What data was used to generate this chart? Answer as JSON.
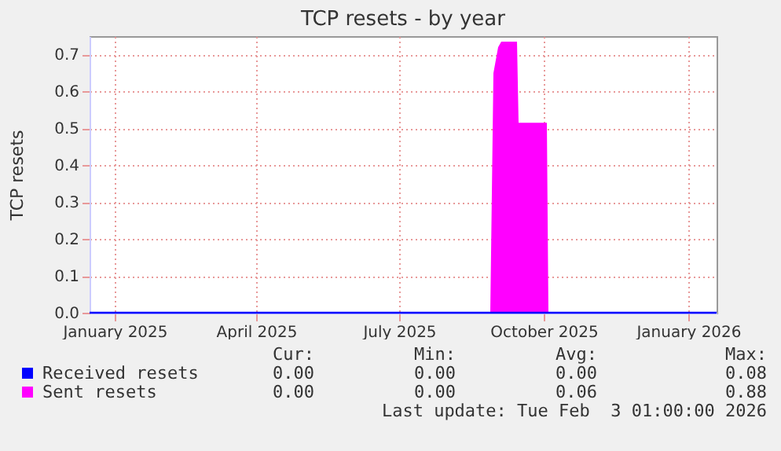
{
  "chart_data": {
    "type": "area",
    "title": "TCP resets - by year",
    "ylabel": "TCP resets",
    "xlim": [
      "2024-12-16",
      "2026-01-19"
    ],
    "xticks": [
      {
        "value": "2025-01-01",
        "label": "January 2025"
      },
      {
        "value": "2025-04-01",
        "label": "April 2025"
      },
      {
        "value": "2025-07-01",
        "label": "July 2025"
      },
      {
        "value": "2025-10-01",
        "label": "October 2025"
      },
      {
        "value": "2026-01-01",
        "label": "January 2026"
      }
    ],
    "ylim": [
      0,
      0.75
    ],
    "yticks": [
      {
        "value": 0,
        "label": "0.0"
      },
      {
        "value": 0.1,
        "label": "0.1"
      },
      {
        "value": 0.2,
        "label": "0.2"
      },
      {
        "value": 0.3,
        "label": "0.3"
      },
      {
        "value": 0.4,
        "label": "0.4"
      },
      {
        "value": 0.5,
        "label": "0.5"
      },
      {
        "value": 0.6,
        "label": "0.6"
      },
      {
        "value": 0.7,
        "label": "0.7"
      }
    ],
    "grid": true,
    "legend": "bottom",
    "series": [
      {
        "name": "Received resets",
        "color": "#0000ff",
        "type": "line",
        "x": [
          "2024-12-16",
          "2025-03-01",
          "2025-06-01",
          "2025-09-01",
          "2025-12-01",
          "2026-01-19"
        ],
        "values": [
          0,
          0,
          0,
          0,
          0,
          0
        ]
      },
      {
        "name": "Sent resets",
        "color": "#ff00ff",
        "x": [
          "2024-12-16",
          "2025-08-28",
          "2025-08-30",
          "2025-09-02",
          "2025-09-04",
          "2025-09-14",
          "2025-09-15",
          "2025-10-03",
          "2025-10-04",
          "2026-01-19"
        ],
        "values": [
          0,
          0,
          0.65,
          0.72,
          0.735,
          0.735,
          0.515,
          0.515,
          0,
          0
        ]
      }
    ],
    "annotations": [
      "Cur:",
      "Min:",
      "Avg:",
      "Max:",
      "0.00",
      "0.00",
      "0.00",
      "0.08",
      "0.00",
      "0.00",
      "0.06",
      "0.88",
      "Last update: Tue Feb  3 01:00:00 2026"
    ]
  }
}
